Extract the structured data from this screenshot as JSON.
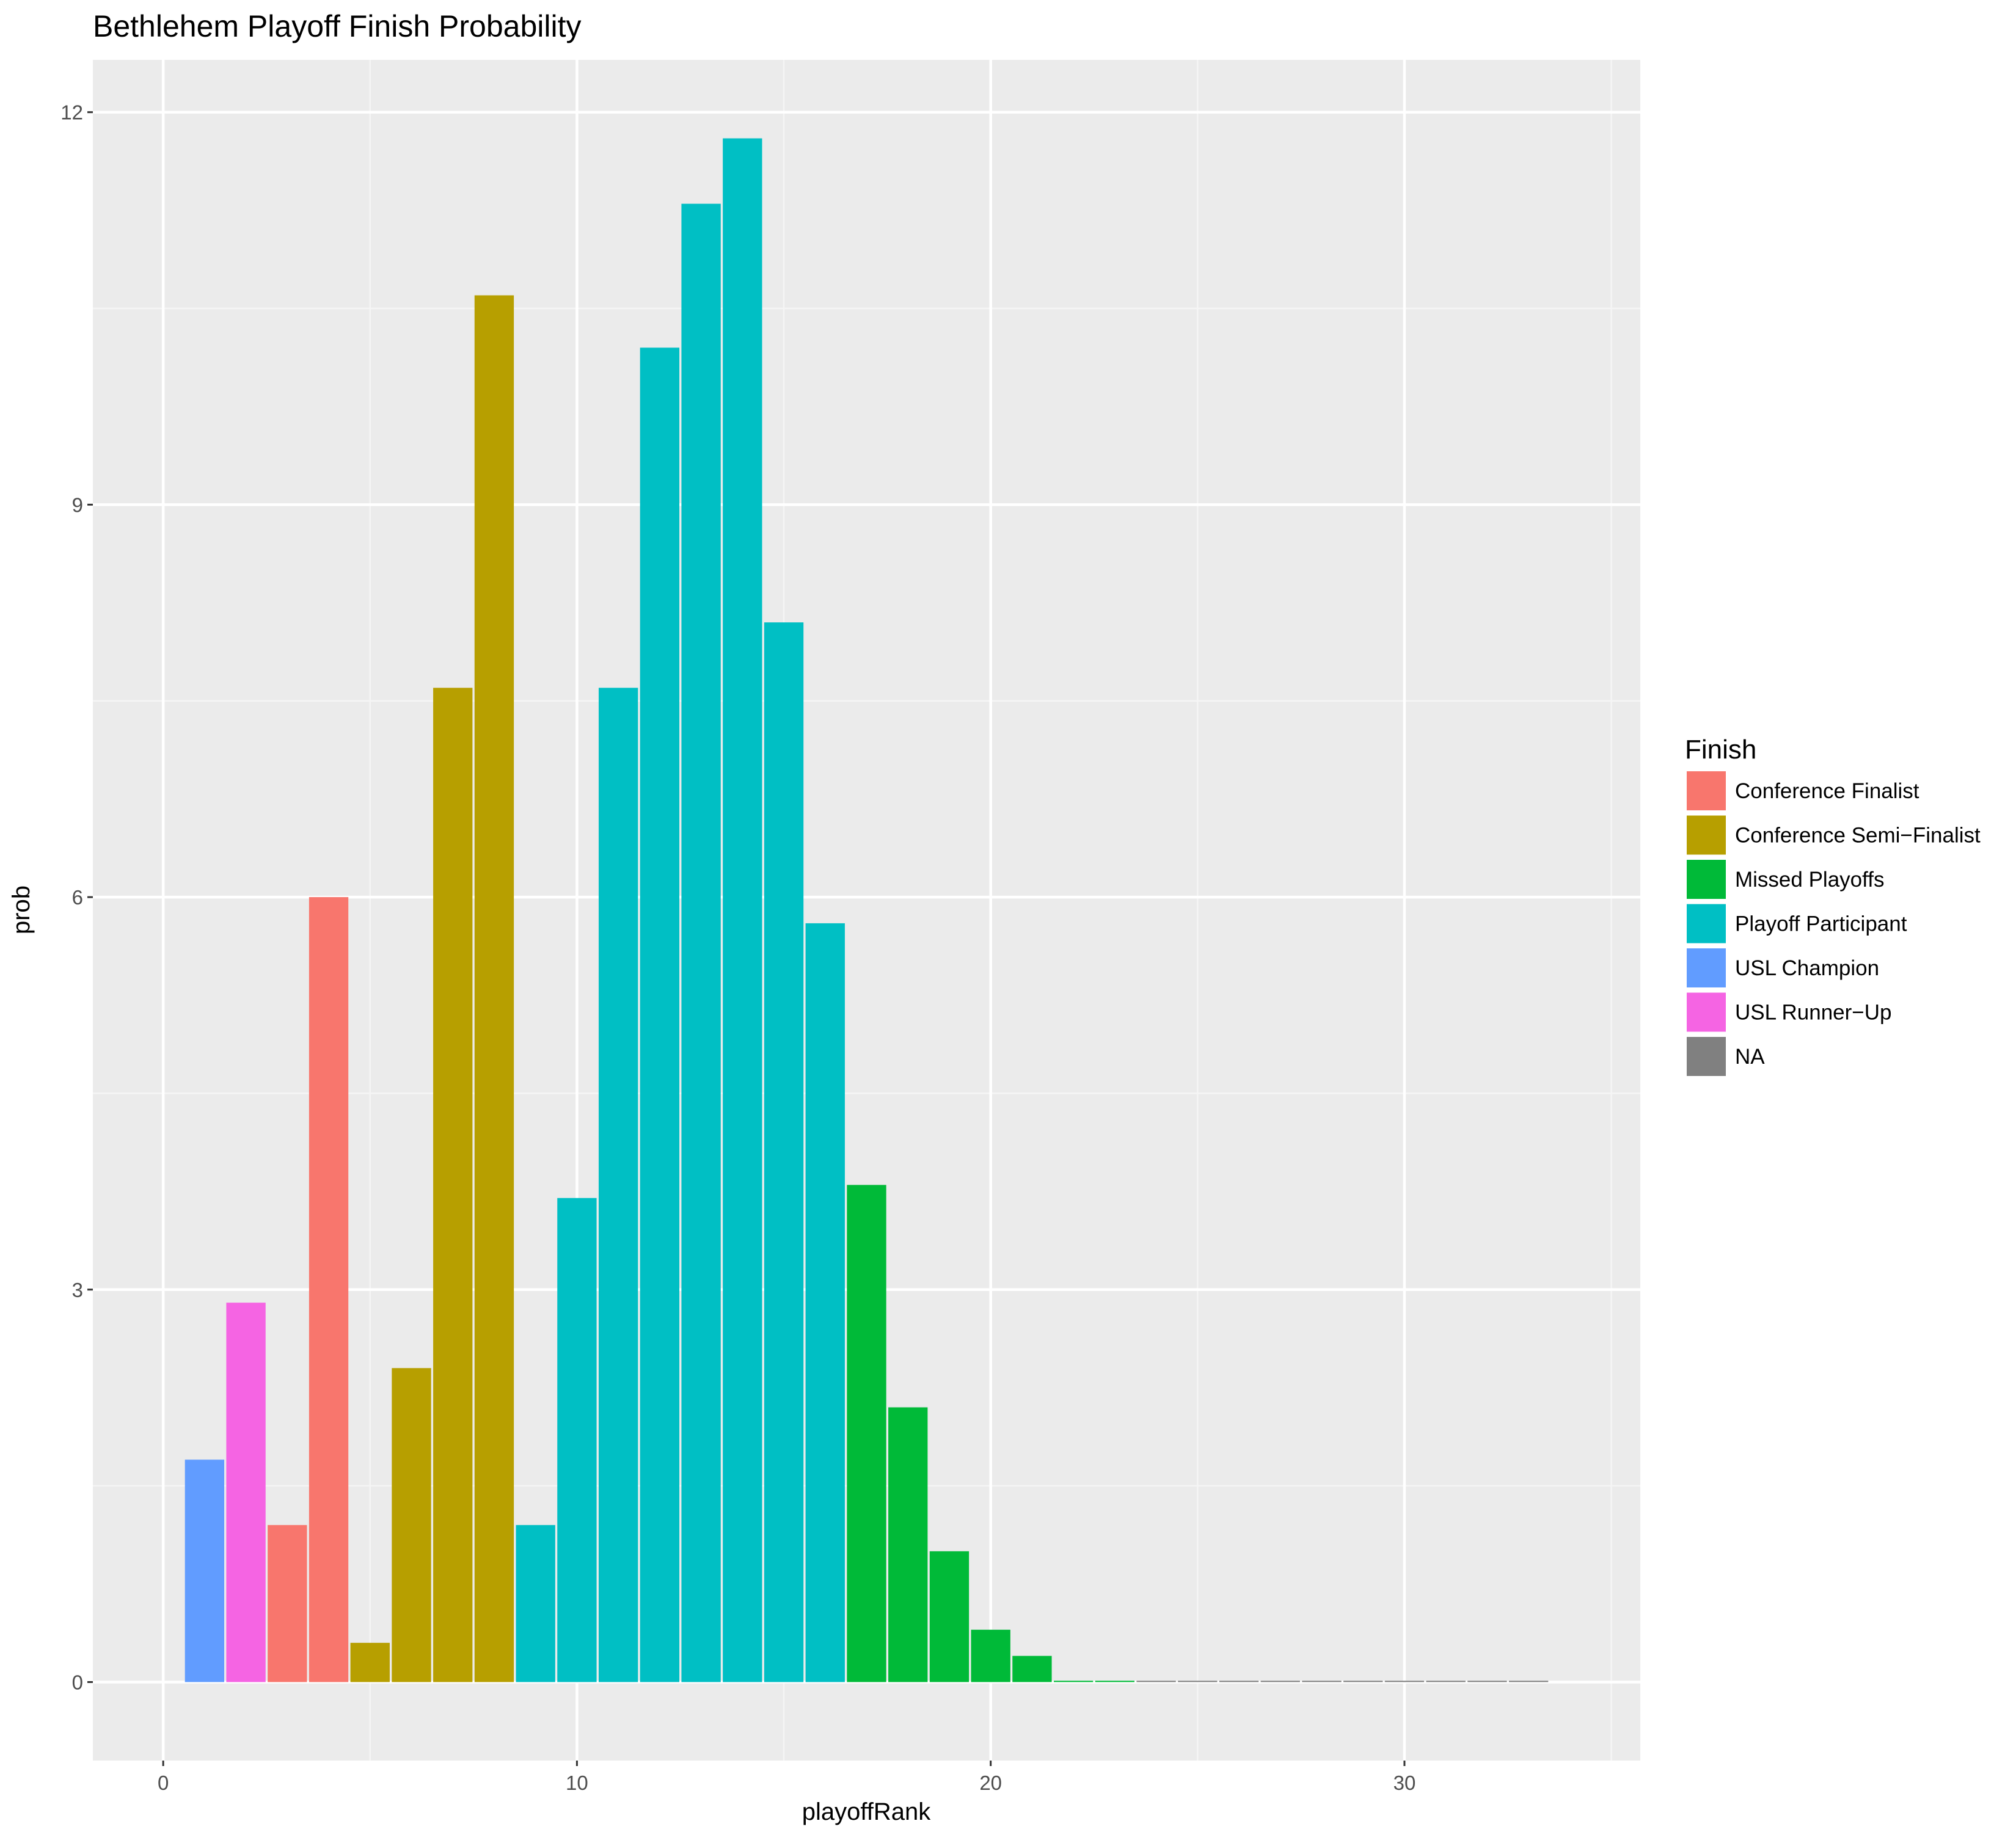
{
  "chart_data": {
    "type": "bar",
    "title": "Bethlehem Playoff Finish Probability",
    "xlabel": "playoffRank",
    "ylabel": "prob",
    "xlim": [
      -1.7,
      35.7
    ],
    "ylim": [
      -0.6,
      12.4
    ],
    "x_ticks": [
      0,
      10,
      20,
      30
    ],
    "x_tick_labels": [
      "0",
      "10",
      "20",
      "30"
    ],
    "y_ticks": [
      0,
      3,
      6,
      9,
      12
    ],
    "y_tick_labels": [
      "0",
      "3",
      "6",
      "9",
      "12"
    ],
    "grid": true,
    "legend_position": "right",
    "legend": {
      "title": "Finish",
      "entries": [
        {
          "label": "Conference Finalist",
          "color": "#F8766D"
        },
        {
          "label": "Conference Semi−Finalist",
          "color": "#B79F00"
        },
        {
          "label": "Missed Playoffs",
          "color": "#00BA38"
        },
        {
          "label": "Playoff Participant",
          "color": "#00BFC4"
        },
        {
          "label": "USL Champion",
          "color": "#619CFF"
        },
        {
          "label": "USL Runner−Up",
          "color": "#F564E3"
        },
        {
          "label": "NA",
          "color": "#808080"
        }
      ]
    },
    "bar_width": 0.95,
    "bars": [
      {
        "x": 1,
        "value": 1.7,
        "group": "USL Champion"
      },
      {
        "x": 2,
        "value": 2.9,
        "group": "USL Runner−Up"
      },
      {
        "x": 3,
        "value": 1.2,
        "group": "Conference Finalist"
      },
      {
        "x": 4,
        "value": 6.0,
        "group": "Conference Finalist"
      },
      {
        "x": 5,
        "value": 0.3,
        "group": "Conference Semi−Finalist"
      },
      {
        "x": 6,
        "value": 2.4,
        "group": "Conference Semi−Finalist"
      },
      {
        "x": 7,
        "value": 7.6,
        "group": "Conference Semi−Finalist"
      },
      {
        "x": 8,
        "value": 10.6,
        "group": "Conference Semi−Finalist"
      },
      {
        "x": 9,
        "value": 1.2,
        "group": "Playoff Participant"
      },
      {
        "x": 10,
        "value": 3.7,
        "group": "Playoff Participant"
      },
      {
        "x": 11,
        "value": 7.6,
        "group": "Playoff Participant"
      },
      {
        "x": 12,
        "value": 10.2,
        "group": "Playoff Participant"
      },
      {
        "x": 13,
        "value": 11.3,
        "group": "Playoff Participant"
      },
      {
        "x": 14,
        "value": 11.8,
        "group": "Playoff Participant"
      },
      {
        "x": 15,
        "value": 8.1,
        "group": "Playoff Participant"
      },
      {
        "x": 16,
        "value": 5.8,
        "group": "Playoff Participant"
      },
      {
        "x": 17,
        "value": 3.8,
        "group": "Missed Playoffs"
      },
      {
        "x": 18,
        "value": 2.1,
        "group": "Missed Playoffs"
      },
      {
        "x": 19,
        "value": 1.0,
        "group": "Missed Playoffs"
      },
      {
        "x": 20,
        "value": 0.4,
        "group": "Missed Playoffs"
      },
      {
        "x": 21,
        "value": 0.2,
        "group": "Missed Playoffs"
      },
      {
        "x": 22,
        "value": 0.01,
        "group": "Missed Playoffs"
      },
      {
        "x": 23,
        "value": 0.01,
        "group": "Missed Playoffs"
      },
      {
        "x": 24,
        "value": 0.01,
        "group": "NA"
      },
      {
        "x": 25,
        "value": 0.01,
        "group": "NA"
      },
      {
        "x": 26,
        "value": 0.01,
        "group": "NA"
      },
      {
        "x": 27,
        "value": 0.01,
        "group": "NA"
      },
      {
        "x": 28,
        "value": 0.01,
        "group": "NA"
      },
      {
        "x": 29,
        "value": 0.01,
        "group": "NA"
      },
      {
        "x": 30,
        "value": 0.01,
        "group": "NA"
      },
      {
        "x": 31,
        "value": 0.01,
        "group": "NA"
      },
      {
        "x": 32,
        "value": 0.01,
        "group": "NA"
      },
      {
        "x": 33,
        "value": 0.01,
        "group": "NA"
      }
    ]
  },
  "colors": {
    "panel_background": "#EBEBEB",
    "grid_major": "#FFFFFF",
    "grid_minor": "#F5F5F5",
    "tick_text": "#4D4D4D",
    "tick_mark": "#333333"
  }
}
